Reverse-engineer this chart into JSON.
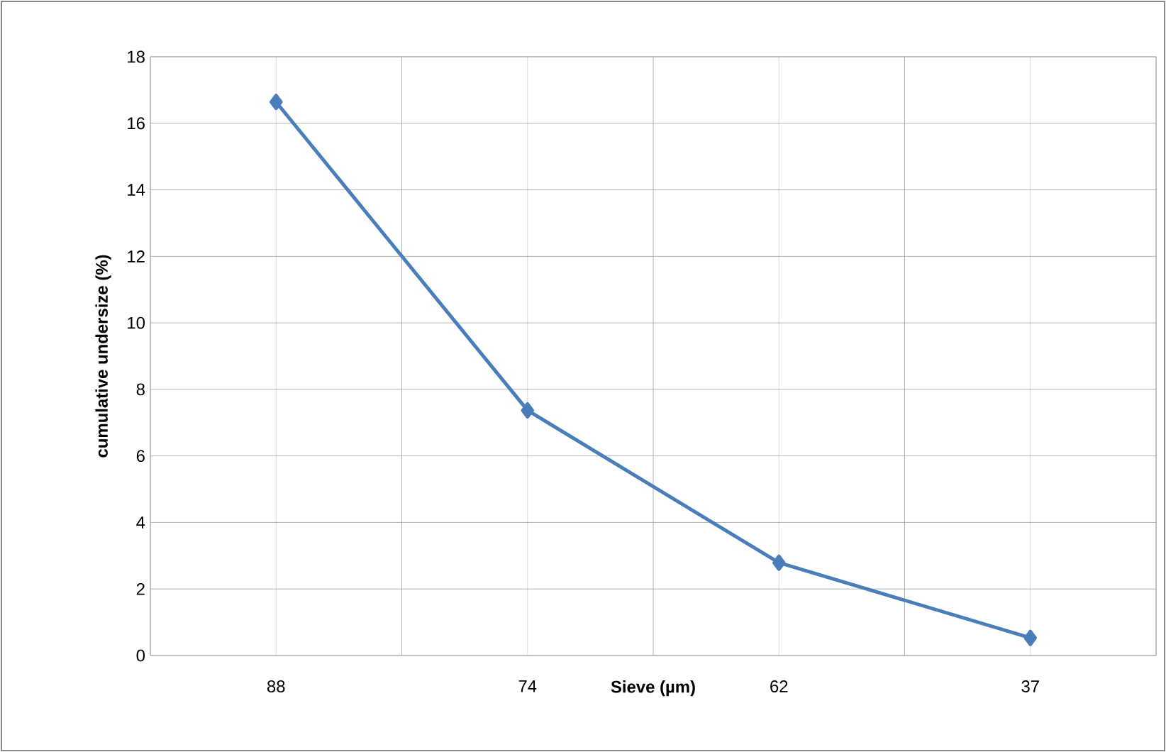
{
  "chart_data": {
    "type": "line",
    "xlabel": "Sieve (µm)",
    "ylabel": "cumulative undersize (%)",
    "categories": [
      "88",
      "74",
      "62",
      "37"
    ],
    "series": [
      {
        "color": "#4a7ebb",
        "values": [
          16.64,
          7.37,
          2.79,
          0.53
        ]
      }
    ],
    "ylim": [
      0,
      18
    ],
    "yticks": [
      0,
      2,
      4,
      6,
      8,
      10,
      12,
      14,
      16,
      18
    ],
    "grid": true,
    "marker": "diamond",
    "line_style": "solid"
  }
}
